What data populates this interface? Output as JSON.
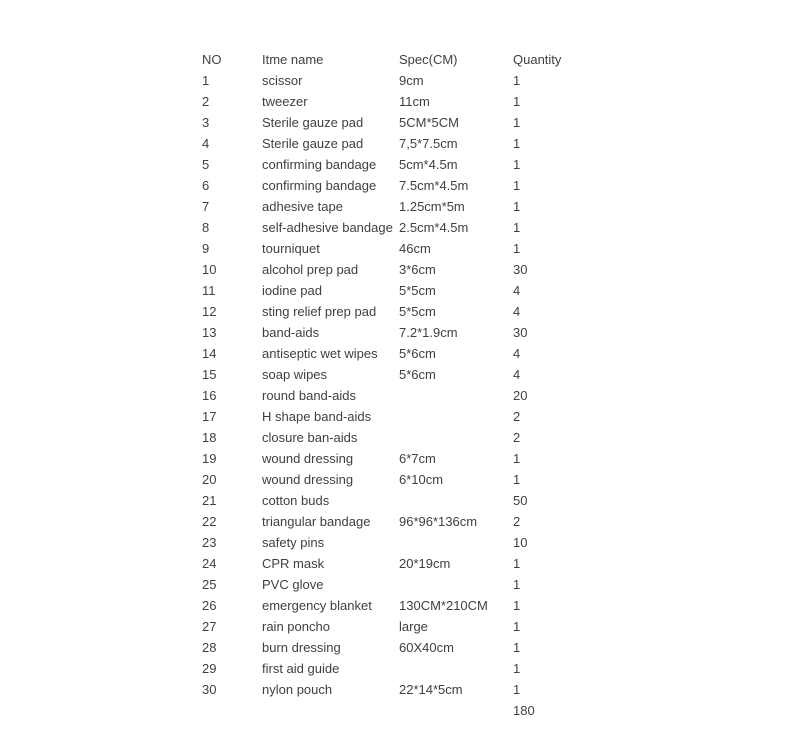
{
  "colors": {
    "text": "#404040",
    "background": "#ffffff"
  },
  "table": {
    "headers": {
      "no": "NO",
      "item_name": "Itme name",
      "spec": "Spec(CM)",
      "quantity": "Quantity"
    },
    "rows": [
      {
        "no": "1",
        "item_name": "scissor",
        "spec": "9cm",
        "quantity": "1"
      },
      {
        "no": "2",
        "item_name": "tweezer",
        "spec": "11cm",
        "quantity": "1"
      },
      {
        "no": "3",
        "item_name": "Sterile gauze pad",
        "spec": "5CM*5CM",
        "quantity": "1"
      },
      {
        "no": "4",
        "item_name": "Sterile gauze pad",
        "spec": "7,5*7.5cm",
        "quantity": "1"
      },
      {
        "no": "5",
        "item_name": "confirming bandage",
        "spec": "5cm*4.5m",
        "quantity": "1"
      },
      {
        "no": "6",
        "item_name": "confirming bandage",
        "spec": "7.5cm*4.5m",
        "quantity": "1"
      },
      {
        "no": "7",
        "item_name": "adhesive tape",
        "spec": "1.25cm*5m",
        "quantity": "1"
      },
      {
        "no": "8",
        "item_name": "self-adhesive bandage",
        "spec": "2.5cm*4.5m",
        "quantity": "1"
      },
      {
        "no": "9",
        "item_name": "tourniquet",
        "spec": "46cm",
        "quantity": "1"
      },
      {
        "no": "10",
        "item_name": "alcohol prep pad",
        "spec": "3*6cm",
        "quantity": "30"
      },
      {
        "no": "11",
        "item_name": "iodine pad",
        "spec": "5*5cm",
        "quantity": "4"
      },
      {
        "no": "12",
        "item_name": "sting relief prep pad",
        "spec": "5*5cm",
        "quantity": "4"
      },
      {
        "no": "13",
        "item_name": "band-aids",
        "spec": "7.2*1.9cm",
        "quantity": "30"
      },
      {
        "no": "14",
        "item_name": "antiseptic wet wipes",
        "spec": "5*6cm",
        "quantity": "4"
      },
      {
        "no": "15",
        "item_name": "soap wipes",
        "spec": "5*6cm",
        "quantity": "4"
      },
      {
        "no": "16",
        "item_name": "round band-aids",
        "spec": "",
        "quantity": "20"
      },
      {
        "no": "17",
        "item_name": "H shape band-aids",
        "spec": "",
        "quantity": "2"
      },
      {
        "no": "18",
        "item_name": "closure ban-aids",
        "spec": "",
        "quantity": "2"
      },
      {
        "no": "19",
        "item_name": "wound dressing",
        "spec": "6*7cm",
        "quantity": "1"
      },
      {
        "no": "20",
        "item_name": "wound dressing",
        "spec": "6*10cm",
        "quantity": "1"
      },
      {
        "no": "21",
        "item_name": "cotton buds",
        "spec": "",
        "quantity": "50"
      },
      {
        "no": "22",
        "item_name": "triangular bandage",
        "spec": "96*96*136cm",
        "quantity": "2"
      },
      {
        "no": "23",
        "item_name": "safety pins",
        "spec": "",
        "quantity": "10"
      },
      {
        "no": "24",
        "item_name": "CPR mask",
        "spec": "20*19cm",
        "quantity": "1"
      },
      {
        "no": "25",
        "item_name": "PVC glove",
        "spec": "",
        "quantity": "1"
      },
      {
        "no": "26",
        "item_name": "emergency blanket",
        "spec": "130CM*210CM",
        "quantity": "1"
      },
      {
        "no": "27",
        "item_name": "rain poncho",
        "spec": "large",
        "quantity": "1"
      },
      {
        "no": "28",
        "item_name": "burn dressing",
        "spec": "60X40cm",
        "quantity": "1"
      },
      {
        "no": "29",
        "item_name": "first aid guide",
        "spec": "",
        "quantity": "1"
      },
      {
        "no": "30",
        "item_name": "nylon pouch",
        "spec": "22*14*5cm",
        "quantity": "1"
      }
    ],
    "total_quantity": "180"
  }
}
